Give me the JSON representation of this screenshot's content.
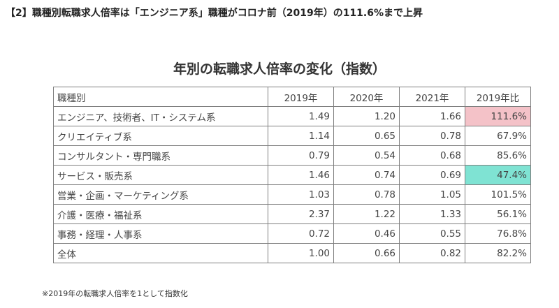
{
  "heading": "【2】職種別転職求人倍率は「エンジニア系」職種がコロナ前（2019年）の111.6%まで上昇",
  "footnote": "※2019年の転職求人倍率を1として指数化",
  "colors": {
    "highlight_high": "#f4c2c8",
    "highlight_low": "#7fe3d3"
  },
  "chart_data": {
    "type": "table",
    "title": "年別の転職求人倍率の変化（指数）",
    "columns": [
      "職種別",
      "2019年",
      "2020年",
      "2021年",
      "2019年比"
    ],
    "rows": [
      {
        "category": "エンジニア、技術者、IT・システム系",
        "y2019": "1.49",
        "y2020": "1.20",
        "y2021": "1.66",
        "ratio": "111.6%",
        "highlight": "highlight_high"
      },
      {
        "category": "クリエイティブ系",
        "y2019": "1.14",
        "y2020": "0.65",
        "y2021": "0.78",
        "ratio": "67.9%",
        "highlight": ""
      },
      {
        "category": "コンサルタント・専門職系",
        "y2019": "0.79",
        "y2020": "0.54",
        "y2021": "0.68",
        "ratio": "85.6%",
        "highlight": ""
      },
      {
        "category": "サービス・販売系",
        "y2019": "1.46",
        "y2020": "0.74",
        "y2021": "0.69",
        "ratio": "47.4%",
        "highlight": "highlight_low"
      },
      {
        "category": "営業・企画・マーケティング系",
        "y2019": "1.03",
        "y2020": "0.78",
        "y2021": "1.05",
        "ratio": "101.5%",
        "highlight": ""
      },
      {
        "category": "介護・医療・福祉系",
        "y2019": "2.37",
        "y2020": "1.22",
        "y2021": "1.33",
        "ratio": "56.1%",
        "highlight": ""
      },
      {
        "category": "事務・経理・人事系",
        "y2019": "0.72",
        "y2020": "0.46",
        "y2021": "0.55",
        "ratio": "76.8%",
        "highlight": ""
      },
      {
        "category": "全体",
        "y2019": "1.00",
        "y2020": "0.66",
        "y2021": "0.82",
        "ratio": "82.2%",
        "highlight": ""
      }
    ]
  }
}
